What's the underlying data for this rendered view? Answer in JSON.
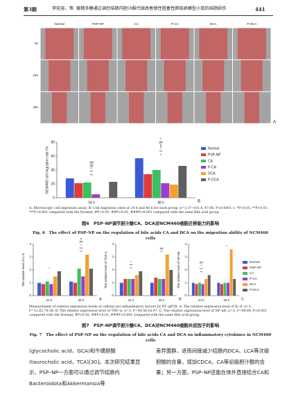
{
  "header": {
    "issue": "第3期",
    "running_title": "李宛容，等. 黄精多糖通过调控结肠内胆汁酸代谢改善慢性阻塞性肺疾病模型小鼠的结肠损伤",
    "page": "441"
  },
  "figure6": {
    "columns": [
      "Normal",
      "PSP-NP",
      "CA",
      "P-CA",
      "DCA",
      "P-DCA"
    ],
    "rows": [
      "0h",
      "24h",
      "48h"
    ],
    "panel": "A",
    "note": "A: Microscopic cell migration assay; B: Cell migration rates at 24 h and 48 h for each group, n=3, F=101.4, 47.06, P<0.0001 1. *P<0.05, **P<0.01, ***P<0.001 compared with the Normal; #P<0.05, ##P<0.01, ###P<0.001 compared with the same Bile acid group.",
    "caption_cn": "图6　PSP–NP调节胆汁酸CA、DCA对NCM460细胞迁移能力的影响",
    "caption_en": "Fig. 6　The effect of PSP–NP on the regulation of bile acids CA and DCA on the migration ability of NCM460 cells"
  },
  "figure7": {
    "note": "Measurement of relative expression levels of cellular pro-inflammatory factors by RT–qPCR. A: The relative expression level of IL–6, n=3, F=11.63,76.56; B: The relative expression level of TNF–α, n=3, F=49.58,16.97; C: The relative expression level of NF–κB, n=3, F=69.64, P<0.001 compared with the Normal; #P<0.05, ##P<0.01, ###P<0.001 compared with the same Bile acid group.",
    "caption_cn": "图7　PSP–NP调节胆汁酸CA、DCA对NCM460细胞炎症因子的影响",
    "caption_en": "Fig. 7　The effect of PSP–NP on the regulation of bile acids CA and DCA on inflammatory cytokines in NCM460 cells"
  },
  "body": {
    "left": "(glycocholic acid，GCA)和牛磺胆酸(taurocholic acid，TCA)[30]。本次研究结果显示，PSP–NP一方面可以通过调节结肠内Bacteroidota和Akkermansia等",
    "right": "差异菌群，进而间接减少结肠内DCA、LCA等次级胆酸的含量，增加CDCA、CA等初级胆汁酸的含量；另一方面，PSP–NP还能在体外直接结合CA和"
  },
  "chart_data": [
    {
      "type": "bar",
      "panel": "B",
      "y_label": "NCM460 cell migration rate /%",
      "categories": [
        "24 h",
        "48 h"
      ],
      "ylim": [
        0,
        80
      ],
      "yticks": [
        0,
        20,
        40,
        60,
        80
      ],
      "legend": true,
      "series": [
        {
          "name": "Normal",
          "color": "#3b5bd6",
          "values": [
            28,
            57
          ]
        },
        {
          "name": "PSP-NP",
          "color": "#e03c3c",
          "values": [
            21,
            34
          ]
        },
        {
          "name": "CA",
          "color": "#3cc060",
          "values": [
            22,
            40
          ]
        },
        {
          "name": "P-CA",
          "color": "#9a3fc8",
          "values": [
            5,
            21
          ]
        },
        {
          "name": "DCA",
          "color": "#f5a030",
          "values": [
            null,
            19
          ]
        },
        {
          "name": "P-DCA",
          "color": "#606060",
          "values": [
            23,
            46
          ]
        }
      ],
      "annotations": [
        [
          "**",
          "**",
          "*",
          "##",
          "##"
        ],
        [
          "*",
          "**",
          "*",
          "#",
          "##",
          "*"
        ]
      ]
    },
    {
      "type": "bar",
      "panel": "A",
      "y_label": "The relative level of IL-6",
      "categories": [
        "24 h",
        "48 h"
      ],
      "ylim": [
        0,
        4
      ],
      "yticks": [
        0,
        1,
        2,
        3,
        4
      ],
      "legend": false,
      "series": [
        {
          "name": "Normal",
          "color": "#3b5bd6",
          "values": [
            1,
            1.1
          ]
        },
        {
          "name": "PSP-NP",
          "color": "#e03c3c",
          "values": [
            0.9,
            1
          ]
        },
        {
          "name": "CA",
          "color": "#3cc060",
          "values": [
            1.1,
            2.1
          ]
        },
        {
          "name": "P-CA",
          "color": "#9a3fc8",
          "values": [
            0.9,
            1.5
          ]
        },
        {
          "name": "DCA",
          "color": "#f5a030",
          "values": [
            1.5,
            3.2
          ]
        },
        {
          "name": "P-DCA",
          "color": "#606060",
          "values": [
            1.9,
            2.1
          ]
        }
      ],
      "annotations": [
        [
          "*"
        ],
        [
          "**",
          "***",
          "*",
          "##",
          "#"
        ]
      ]
    },
    {
      "type": "bar",
      "panel": "B",
      "y_label": "The relative level of TNF-α",
      "categories": [
        "24 h",
        "48 h"
      ],
      "ylim": [
        0,
        4
      ],
      "yticks": [
        0,
        1,
        2,
        3,
        4
      ],
      "legend": false,
      "series": [
        {
          "name": "Normal",
          "color": "#3b5bd6",
          "values": [
            1,
            1
          ]
        },
        {
          "name": "PSP-NP",
          "color": "#e03c3c",
          "values": [
            1.3,
            1.4
          ]
        },
        {
          "name": "CA",
          "color": "#3cc060",
          "values": [
            1.3,
            1.3
          ]
        },
        {
          "name": "P-CA",
          "color": "#9a3fc8",
          "values": [
            1.3,
            1.3
          ]
        },
        {
          "name": "DCA",
          "color": "#f5a030",
          "values": [
            1.6,
            3.2
          ]
        },
        {
          "name": "P-DCA",
          "color": "#606060",
          "values": [
            1.9,
            2
          ]
        }
      ],
      "annotations": [
        [
          "**",
          "***",
          "*"
        ],
        [
          "**",
          "##"
        ]
      ]
    },
    {
      "type": "bar",
      "panel": "C",
      "y_label": "The relative level of NF-κB",
      "categories": [
        "24 h",
        "48 h"
      ],
      "ylim": [
        0,
        4
      ],
      "yticks": [
        0,
        1,
        2,
        3,
        4
      ],
      "legend": true,
      "series": [
        {
          "name": "Normal",
          "color": "#3b5bd6",
          "values": [
            1,
            1
          ]
        },
        {
          "name": "PSP-NP",
          "color": "#e03c3c",
          "values": [
            0.9,
            0.9
          ]
        },
        {
          "name": "CA",
          "color": "#3cc060",
          "values": [
            1,
            1
          ]
        },
        {
          "name": "P-CA",
          "color": "#9a3fc8",
          "values": [
            0.9,
            1
          ]
        },
        {
          "name": "DCA",
          "color": "#f5a030",
          "values": [
            1.3,
            3.6
          ]
        },
        {
          "name": "P-DCA",
          "color": "#606060",
          "values": [
            1.6,
            1.3
          ]
        }
      ],
      "annotations": [
        [
          "**",
          "***",
          "*",
          "##"
        ],
        [
          "*"
        ]
      ]
    }
  ]
}
